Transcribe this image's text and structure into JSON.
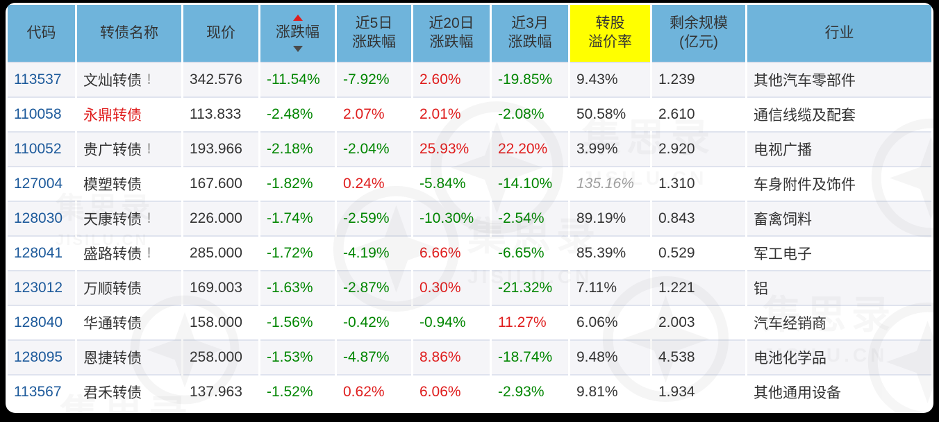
{
  "colors": {
    "header_bg": "#6fb4db",
    "header_highlight_bg": "#ffff00",
    "up_red": "#df1d1d",
    "down_green": "#008600",
    "code_blue": "#1d5a9b",
    "text_dark": "#333333",
    "muted_gray": "#a0a0a0",
    "row_alt_bg": "#f5f5f8",
    "separator": "#dfe3ee",
    "outer_bg": "#000000"
  },
  "watermark": {
    "brand": "集思录",
    "domain": "JISILU.CN"
  },
  "table": {
    "columns": [
      {
        "id": "code",
        "lines": [
          "代码"
        ]
      },
      {
        "id": "name",
        "lines": [
          "转债名称"
        ]
      },
      {
        "id": "price",
        "lines": [
          "现价"
        ]
      },
      {
        "id": "change",
        "lines": [
          "涨跌幅"
        ],
        "sort_arrows": true
      },
      {
        "id": "chg5d",
        "lines": [
          "近5日",
          "涨跌幅"
        ]
      },
      {
        "id": "chg20d",
        "lines": [
          "近20日",
          "涨跌幅"
        ]
      },
      {
        "id": "chg3m",
        "lines": [
          "近3月",
          "涨跌幅"
        ]
      },
      {
        "id": "premium",
        "lines": [
          "转股",
          "溢价率"
        ],
        "highlight": true
      },
      {
        "id": "size",
        "lines": [
          "剩余规模",
          "(亿元)"
        ]
      },
      {
        "id": "industry",
        "lines": [
          "行业"
        ]
      }
    ],
    "rows": [
      {
        "code": "113537",
        "name": "文灿转债",
        "warn": true,
        "name_red": false,
        "price": "342.576",
        "change": "-11.54%",
        "chg5d": "-7.92%",
        "chg20d": "2.60%",
        "chg3m": "-19.85%",
        "premium": "9.43%",
        "premium_muted": false,
        "size": "1.239",
        "industry": "其他汽车零部件"
      },
      {
        "code": "110058",
        "name": "永鼎转债",
        "warn": false,
        "name_red": true,
        "price": "113.833",
        "change": "-2.48%",
        "chg5d": "2.07%",
        "chg20d": "2.01%",
        "chg3m": "-2.08%",
        "premium": "50.58%",
        "premium_muted": false,
        "size": "2.610",
        "industry": "通信线缆及配套"
      },
      {
        "code": "110052",
        "name": "贵广转债",
        "warn": true,
        "name_red": false,
        "price": "193.966",
        "change": "-2.18%",
        "chg5d": "-2.04%",
        "chg20d": "25.93%",
        "chg3m": "22.20%",
        "premium": "3.99%",
        "premium_muted": false,
        "size": "2.920",
        "industry": "电视广播"
      },
      {
        "code": "127004",
        "name": "模塑转债",
        "warn": false,
        "name_red": false,
        "price": "167.600",
        "change": "-1.82%",
        "chg5d": "0.24%",
        "chg20d": "-5.84%",
        "chg3m": "-14.10%",
        "premium": "135.16%",
        "premium_muted": true,
        "size": "1.310",
        "industry": "车身附件及饰件"
      },
      {
        "code": "128030",
        "name": "天康转债",
        "warn": true,
        "name_red": false,
        "price": "226.000",
        "change": "-1.74%",
        "chg5d": "-2.59%",
        "chg20d": "-10.30%",
        "chg3m": "-2.54%",
        "premium": "89.19%",
        "premium_muted": false,
        "size": "0.843",
        "industry": "畜禽饲料"
      },
      {
        "code": "128041",
        "name": "盛路转债",
        "warn": true,
        "name_red": false,
        "price": "285.000",
        "change": "-1.72%",
        "chg5d": "-4.19%",
        "chg20d": "6.66%",
        "chg3m": "-6.65%",
        "premium": "85.39%",
        "premium_muted": false,
        "size": "0.529",
        "industry": "军工电子"
      },
      {
        "code": "123012",
        "name": "万顺转债",
        "warn": false,
        "name_red": false,
        "price": "169.003",
        "change": "-1.63%",
        "chg5d": "-2.87%",
        "chg20d": "0.30%",
        "chg3m": "-21.32%",
        "premium": "7.11%",
        "premium_muted": false,
        "size": "1.221",
        "industry": "铝"
      },
      {
        "code": "128040",
        "name": "华通转债",
        "warn": false,
        "name_red": false,
        "price": "158.000",
        "change": "-1.56%",
        "chg5d": "-0.42%",
        "chg20d": "-0.94%",
        "chg3m": "11.27%",
        "premium": "6.06%",
        "premium_muted": false,
        "size": "2.003",
        "industry": "汽车经销商"
      },
      {
        "code": "128095",
        "name": "恩捷转债",
        "warn": false,
        "name_red": false,
        "price": "258.000",
        "change": "-1.53%",
        "chg5d": "-4.87%",
        "chg20d": "8.86%",
        "chg3m": "-18.74%",
        "premium": "9.48%",
        "premium_muted": false,
        "size": "4.538",
        "industry": "电池化学品"
      },
      {
        "code": "113567",
        "name": "君禾转债",
        "warn": false,
        "name_red": false,
        "price": "137.963",
        "change": "-1.52%",
        "chg5d": "0.62%",
        "chg20d": "6.06%",
        "chg3m": "-2.93%",
        "premium": "9.81%",
        "premium_muted": false,
        "size": "1.934",
        "industry": "其他通用设备"
      }
    ]
  }
}
